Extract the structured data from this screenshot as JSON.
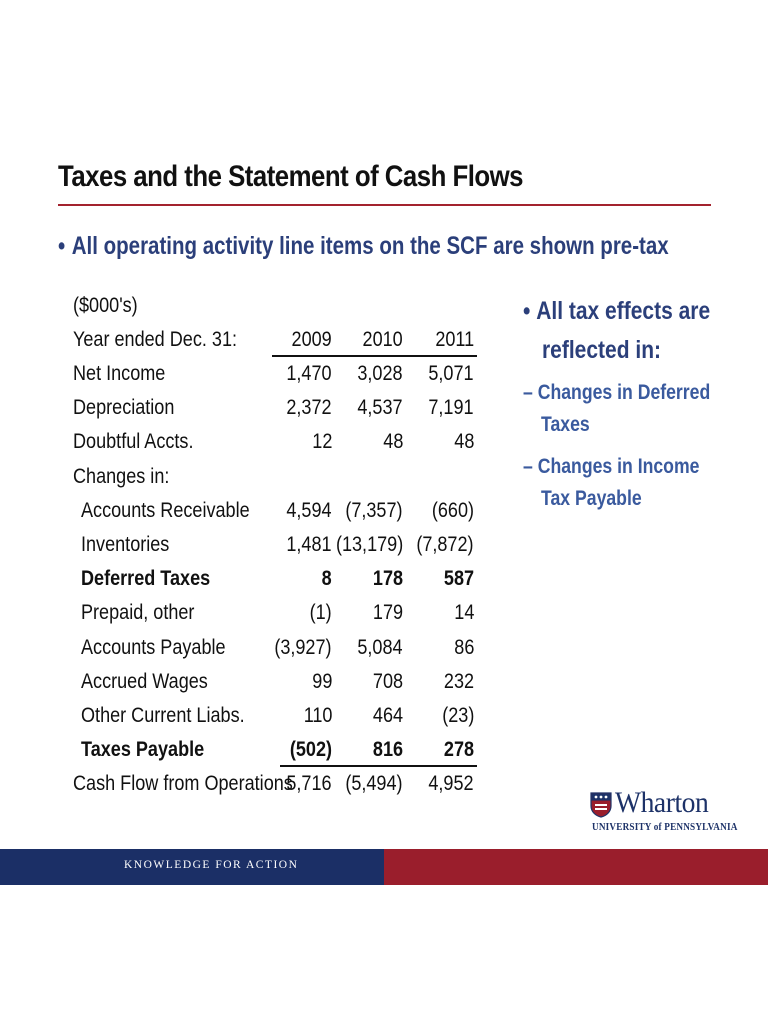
{
  "slide": {
    "title": "Taxes and the Statement of Cash Flows",
    "main_bullet": "All operating activity line items on the SCF are shown pre-tax",
    "bullet_char": "•"
  },
  "table": {
    "units": "($000's)",
    "header_label": "Year ended Dec. 31:",
    "years": [
      "2009",
      "2010",
      "2011"
    ],
    "rows": [
      {
        "label": "Net Income",
        "values": [
          "1,470",
          "3,028",
          "5,071"
        ],
        "indent": false,
        "bold": false
      },
      {
        "label": "Depreciation",
        "values": [
          "2,372",
          "4,537",
          "7,191"
        ],
        "indent": false,
        "bold": false
      },
      {
        "label": "Doubtful Accts.",
        "values": [
          "12",
          "48",
          "48"
        ],
        "indent": false,
        "bold": false
      },
      {
        "label": "Changes in:",
        "values": [
          "",
          "",
          ""
        ],
        "indent": false,
        "bold": false
      },
      {
        "label": "Accounts Receivable",
        "values": [
          "4,594",
          "(7,357)",
          "(660)"
        ],
        "indent": true,
        "bold": false
      },
      {
        "label": "Inventories",
        "values": [
          "1,481",
          "(13,179)",
          "(7,872)"
        ],
        "indent": true,
        "bold": false
      },
      {
        "label": "Deferred Taxes",
        "values": [
          "8",
          "178",
          "587"
        ],
        "indent": true,
        "bold": true
      },
      {
        "label": "Prepaid, other",
        "values": [
          "(1)",
          "179",
          "14"
        ],
        "indent": true,
        "bold": false
      },
      {
        "label": "Accounts Payable",
        "values": [
          "(3,927)",
          "5,084",
          "86"
        ],
        "indent": true,
        "bold": false
      },
      {
        "label": "Accrued Wages",
        "values": [
          "99",
          "708",
          "232"
        ],
        "indent": true,
        "bold": false
      },
      {
        "label": "Other Current Liabs.",
        "values": [
          "110",
          "464",
          "(23)"
        ],
        "indent": true,
        "bold": false
      },
      {
        "label": "Taxes Payable",
        "values": [
          "(502)",
          "816",
          "278"
        ],
        "indent": true,
        "bold": true
      },
      {
        "label": "Cash Flow from Operations",
        "values": [
          "5,716",
          "(5,494)",
          "4,952"
        ],
        "indent": false,
        "bold": false
      }
    ]
  },
  "side": {
    "bullet_char": "•",
    "main": [
      "All tax effects are",
      "reflected in:"
    ],
    "dash": "–",
    "subs": [
      [
        "Changes in Deferred",
        "Taxes"
      ],
      [
        "Changes in Income",
        "Tax Payable"
      ]
    ]
  },
  "logo": {
    "name": "Wharton",
    "subtitle": "UNIVERSITY of PENNSYLVANIA"
  },
  "footer": {
    "tagline": "KNOWLEDGE FOR ACTION",
    "colors": {
      "left": "#1b2f66",
      "right": "#9a1e2c"
    }
  }
}
